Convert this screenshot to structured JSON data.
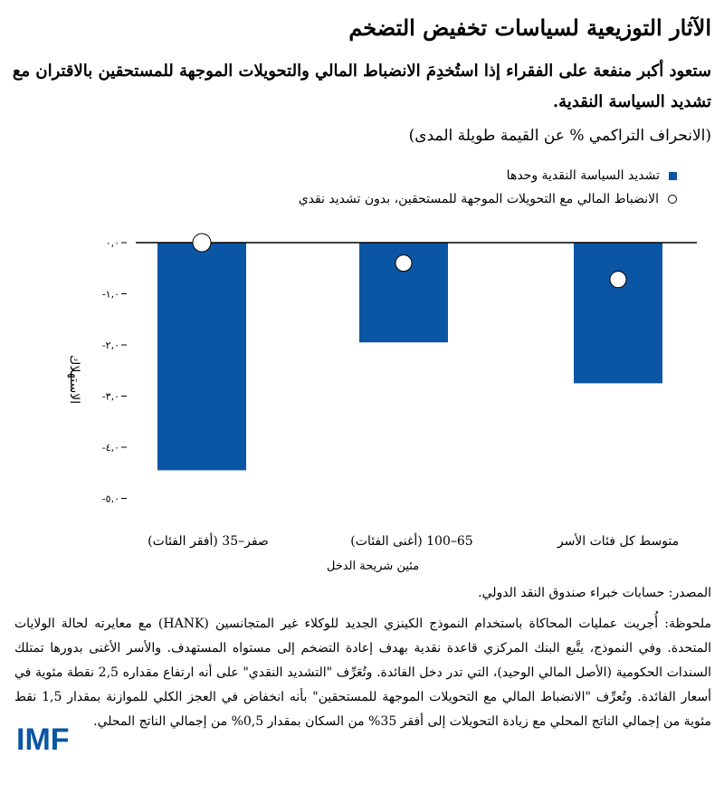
{
  "title": "الآثار التوزيعية لسياسات تخفيض التضخم",
  "subtitle": "ستعود أكبر منفعة على الفقراء إذا استُخدِمَ الانضباط المالي والتحويلات الموجهة للمستحقين بالاقتران مع تشديد السياسة النقدية.",
  "units": "(الانحراف التراكمي % عن القيمة طويلة المدى)",
  "legend": [
    {
      "label": "تشديد السياسة النقدية وحدها",
      "marker": "square"
    },
    {
      "label": "الانضباط المالي مع التحويلات الموجهة للمستحقين، بدون تشديد نقدي",
      "marker": "circle"
    }
  ],
  "source": "المصدر: حسابات خبراء صندوق النقد الدولي.",
  "note": "ملحوظة: أُجريت عمليات المحاكاة باستخدام النموذج الكينزي الجديد للوكلاء غير المتجانسين (HANK) مع معايرته لحالة الولايات المتحدة. وفي النموذج، يتَّبع البنك المركزي قاعدة نقدية بهدف إعادة التضخم إلى مستواه المستهدف. والأسر الأغنى بدورها تمتلك السندات الحكومية (الأصل المالي الوحيد)، التي تدر دخل الفائدة. وتُعَرِّف \"التشديد النقدي\" على أنه ارتفاع مقداره 2,5 نقطة مئوية في أسعار الفائدة. وتُعرِّف \"الانضباط المالي مع التحويلات الموجهة للمستحقين\" بأنه انخفاض في العجز الكلي للموازنة بمقدار 1,5 نقط مئوية من إجمالي الناتج المحلي مع زيادة التحويلات إلى أفقر 35% من السكان بمقدار 0,5% من إجمالي الناتج المحلي.",
  "logo": {
    "text": "IMF",
    "color": "#0b56a4"
  },
  "colors": {
    "bar": "#0b56a4",
    "axis": "#000000"
  },
  "chart_data": {
    "type": "bar",
    "categories": [
      "صفر–35 (أفقر الفئات)",
      "65–100 (أغنى الفئات)",
      "متوسط كل فئات الأسر"
    ],
    "series": [
      {
        "name": "تشديد السياسة النقدية وحدها",
        "type": "bar",
        "values": [
          -4.45,
          -1.95,
          -2.75
        ]
      },
      {
        "name": "الانضباط المالي مع التحويلات الموجهة للمستحقين، بدون تشديد نقدي",
        "type": "scatter",
        "values": [
          0.0,
          -0.4,
          -0.72
        ]
      }
    ],
    "ylabel": "الاستهلاك",
    "xlabel": "مئين شريحة الدخل",
    "ylim": [
      -5.0,
      0.0
    ],
    "yticks": [
      0.0,
      -1.0,
      -2.0,
      -3.0,
      -4.0,
      -5.0
    ],
    "ytick_labels": [
      "٠,٠",
      "-١,٠",
      "-٢,٠",
      "-٣,٠",
      "-٤,٠",
      "-٥,٠"
    ],
    "legend_position": "top-right",
    "grid": false
  }
}
